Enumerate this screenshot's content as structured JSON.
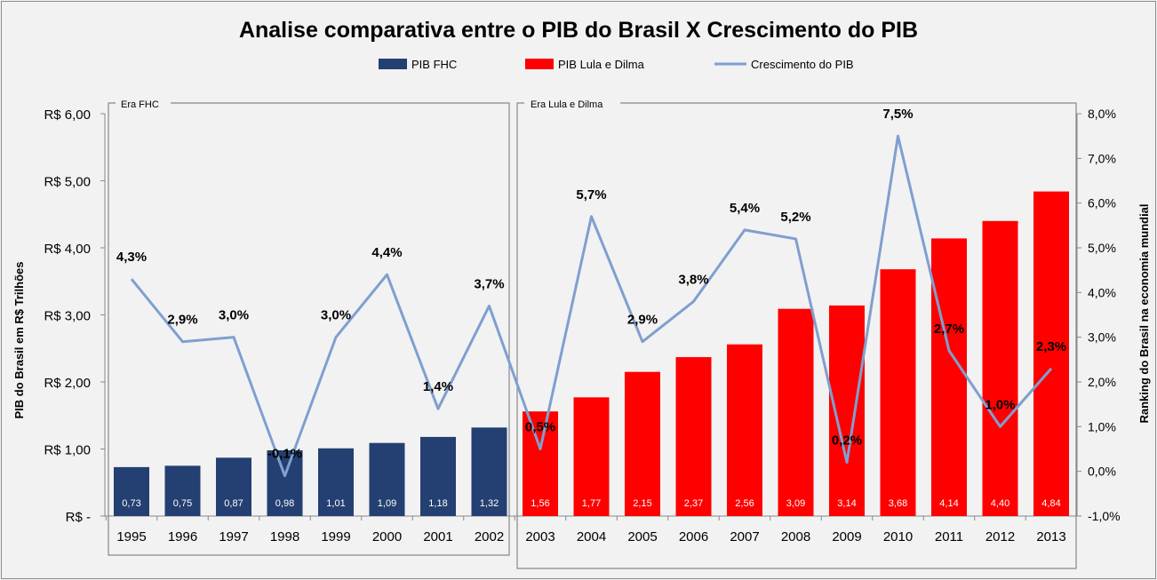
{
  "chart_data": {
    "type": "bar+line",
    "title": "Analise comparativa entre o PIB do Brasil X Crescimento do PIB",
    "ylabel_left": "PIB do Brasil em R$ Trilhões",
    "ylabel_right": "Ranking do Brasil na economia mundial",
    "categories": [
      "1995",
      "1996",
      "1997",
      "1998",
      "1999",
      "2000",
      "2001",
      "2002",
      "2003",
      "2004",
      "2005",
      "2006",
      "2007",
      "2008",
      "2009",
      "2010",
      "2011",
      "2012",
      "2013"
    ],
    "series": [
      {
        "name": "PIB FHC",
        "type": "bar",
        "axis": "left",
        "color": "#243f72",
        "values": [
          0.73,
          0.75,
          0.87,
          0.98,
          1.01,
          1.09,
          1.18,
          1.32,
          null,
          null,
          null,
          null,
          null,
          null,
          null,
          null,
          null,
          null,
          null
        ],
        "labels": [
          "0,73",
          "0,75",
          "0,87",
          "0,98",
          "1,01",
          "1,09",
          "1,18",
          "1,32",
          "",
          "",
          "",
          "",
          "",
          "",
          "",
          "",
          "",
          "",
          ""
        ]
      },
      {
        "name": "PIB Lula e Dilma",
        "type": "bar",
        "axis": "left",
        "color": "#ff0000",
        "values": [
          null,
          null,
          null,
          null,
          null,
          null,
          null,
          null,
          1.56,
          1.77,
          2.15,
          2.37,
          2.56,
          3.09,
          3.14,
          3.68,
          4.14,
          4.4,
          4.84
        ],
        "labels": [
          "",
          "",
          "",
          "",
          "",
          "",
          "",
          "",
          "1,56",
          "1,77",
          "2,15",
          "2,37",
          "2,56",
          "3,09",
          "3,14",
          "3,68",
          "4,14",
          "4,40",
          "4,84"
        ]
      },
      {
        "name": "Crescimento do PIB",
        "type": "line",
        "axis": "right",
        "color": "#7f9fcf",
        "values": [
          4.3,
          2.9,
          3.0,
          -0.1,
          3.0,
          4.4,
          1.4,
          3.7,
          0.5,
          5.7,
          2.9,
          3.8,
          5.4,
          5.2,
          0.2,
          7.5,
          2.7,
          1.0,
          2.3
        ],
        "labels": [
          "4,3%",
          "2,9%",
          "3,0%",
          "-0,1%",
          "3,0%",
          "4,4%",
          "1,4%",
          "3,7%",
          "0,5%",
          "5,7%",
          "2,9%",
          "3,8%",
          "5,4%",
          "5,2%",
          "0,2%",
          "7,5%",
          "2,7%",
          "1,0%",
          "2,3%"
        ]
      }
    ],
    "yleft": {
      "range": [
        0,
        6
      ],
      "ticks": [
        "R$ -",
        "R$ 1,00",
        "R$ 2,00",
        "R$ 3,00",
        "R$ 4,00",
        "R$ 5,00",
        "R$ 6,00"
      ]
    },
    "yright": {
      "range": [
        -1,
        8
      ],
      "ticks": [
        "-1,0%",
        "0,0%",
        "1,0%",
        "2,0%",
        "3,0%",
        "4,0%",
        "5,0%",
        "6,0%",
        "7,0%",
        "8,0%"
      ]
    },
    "groups": [
      {
        "label": "Era FHC"
      },
      {
        "label": "Era Lula  e Dilma"
      }
    ],
    "legend": "top",
    "grid": false
  }
}
